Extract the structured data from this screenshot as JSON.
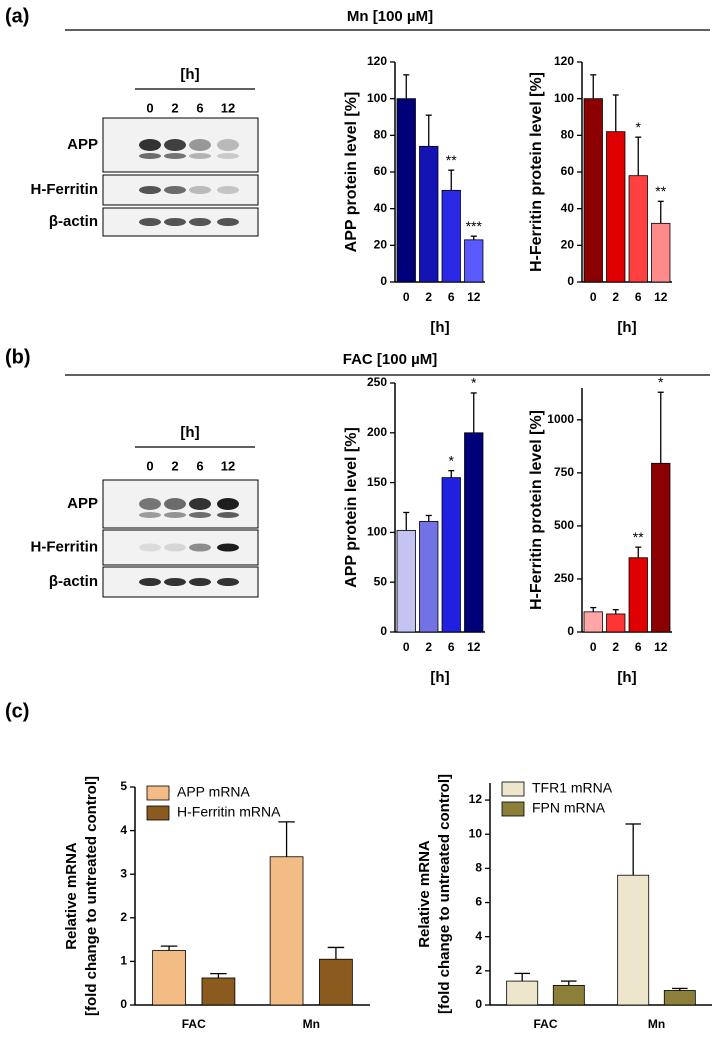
{
  "panels": [
    {
      "label": "(a)",
      "treatment": "Mn [100 µM]",
      "blot": {
        "time_label": "[h]",
        "lanes": [
          "0",
          "2",
          "6",
          "12"
        ],
        "rows": [
          "APP",
          "H-Ferritin",
          "β-actin"
        ]
      }
    },
    {
      "label": "(b)",
      "treatment": "FAC [100 µM]",
      "blot": {
        "time_label": "[h]",
        "lanes": [
          "0",
          "2",
          "6",
          "12"
        ],
        "rows": [
          "APP",
          "H-Ferritin",
          "β-actin"
        ]
      }
    },
    {
      "label": "(c)"
    }
  ],
  "chart_data": [
    {
      "type": "bar",
      "y_label": "APP protein level [%]",
      "x_label": "[h]",
      "categories": [
        "0",
        "2",
        "6",
        "12"
      ],
      "values": [
        100,
        74,
        50,
        23
      ],
      "errors": [
        13,
        17,
        11,
        2
      ],
      "annotations": [
        null,
        null,
        "**",
        "***"
      ],
      "colors": [
        "#00007a",
        "#1414b4",
        "#2a2ae6",
        "#5a5aff"
      ],
      "ylim": [
        0,
        120
      ],
      "yticks": [
        0,
        20,
        40,
        60,
        80,
        100,
        120
      ]
    },
    {
      "type": "bar",
      "y_label": "H-Ferritin protein level [%]",
      "x_label": "[h]",
      "categories": [
        "0",
        "2",
        "6",
        "12"
      ],
      "values": [
        100,
        82,
        58,
        32
      ],
      "errors": [
        13,
        20,
        21,
        12
      ],
      "annotations": [
        null,
        null,
        "*",
        "**"
      ],
      "colors": [
        "#8b0000",
        "#e00000",
        "#ff4040",
        "#ff8a8a"
      ],
      "ylim": [
        0,
        120
      ],
      "yticks": [
        0,
        20,
        40,
        60,
        80,
        100,
        120
      ]
    },
    {
      "type": "bar",
      "y_label": "APP protein level [%]",
      "x_label": "[h]",
      "categories": [
        "0",
        "2",
        "6",
        "12"
      ],
      "values": [
        102,
        111,
        155,
        200
      ],
      "errors": [
        18,
        6,
        7,
        40
      ],
      "annotations": [
        null,
        null,
        "*",
        "*"
      ],
      "colors": [
        "#c4c4f2",
        "#7272e4",
        "#2020e0",
        "#00007a"
      ],
      "ylim": [
        0,
        250
      ],
      "yticks": [
        0,
        50,
        100,
        150,
        200,
        250
      ]
    },
    {
      "type": "bar",
      "y_label": "H-Ferritin protein level [%]",
      "x_label": "[h]",
      "categories": [
        "0",
        "2",
        "6",
        "12"
      ],
      "values": [
        95,
        85,
        350,
        795
      ],
      "errors": [
        20,
        20,
        50,
        335
      ],
      "annotations": [
        null,
        null,
        "**",
        "*"
      ],
      "colors": [
        "#ffa6a6",
        "#ff3434",
        "#e00000",
        "#8b0000"
      ],
      "ylim": [
        0,
        1150
      ],
      "yticks": [
        0,
        250,
        500,
        750,
        1000
      ]
    },
    {
      "type": "grouped-bar",
      "y_label": [
        "Relative mRNA",
        "[fold change to untreated control]"
      ],
      "categories": [
        "FAC",
        "Mn"
      ],
      "series": [
        {
          "name": "APP mRNA",
          "color": "#f4bc85",
          "values": [
            1.25,
            3.4
          ],
          "errors": [
            0.1,
            0.8
          ]
        },
        {
          "name": "H-Ferritin mRNA",
          "color": "#8b5a1e",
          "values": [
            0.62,
            1.05
          ],
          "errors": [
            0.1,
            0.27
          ]
        }
      ],
      "ylim": [
        0,
        5
      ],
      "yticks": [
        0,
        1,
        2,
        3,
        4,
        5
      ],
      "legend": "top-left"
    },
    {
      "type": "grouped-bar",
      "y_label": [
        "Relative mRNA",
        "[fold change to untreated control]"
      ],
      "categories": [
        "FAC",
        "Mn"
      ],
      "series": [
        {
          "name": "TFR1 mRNA",
          "color": "#ede5cc",
          "values": [
            1.4,
            7.6
          ],
          "errors": [
            0.45,
            3.0
          ]
        },
        {
          "name": "FPN mRNA",
          "color": "#8b7f3a",
          "values": [
            1.15,
            0.85
          ],
          "errors": [
            0.25,
            0.12
          ]
        }
      ],
      "ylim": [
        0,
        13
      ],
      "yticks": [
        0,
        2,
        4,
        6,
        8,
        10,
        12
      ],
      "legend": "top-left"
    }
  ]
}
